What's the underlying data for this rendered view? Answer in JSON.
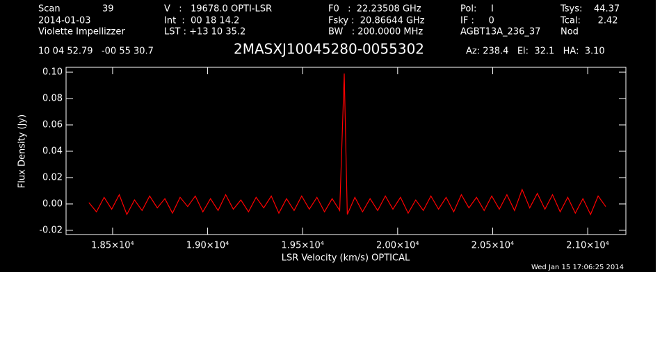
{
  "header": {
    "row1": [
      "Scan",
      "39",
      "V   :   19678.0 OPTI-LSR",
      "F0   :  22.23508 GHz",
      "Pol:     I",
      "Tsys:    44.37"
    ],
    "row2": [
      "2014-01-03",
      "Int  :  00 18 14.2",
      "Fsky :  20.86644 GHz",
      "IF :     0",
      "Tcal:      2.42"
    ],
    "row3": [
      "Violette Impellizzer",
      "LST : +13 10 35.2",
      "BW   : 200.0000 MHz",
      "AGBT13A_236_37",
      "Nod"
    ],
    "coords": "10 04 52.79   -00 55 30.7",
    "pointing": "Az: 238.4   El:  32.1   HA:  3.10",
    "footer": "Wed Jan 15 17:06:25 2014"
  },
  "chart_data": {
    "type": "line",
    "title": "2MASXJ10045280-0055302",
    "x_label": "LSR Velocity (km/s) OPTICAL",
    "y_label": "Flux Density (Jy)",
    "x": [
      18375,
      18415,
      18455,
      18495,
      18535,
      18575,
      18615,
      18655,
      18695,
      18735,
      18775,
      18815,
      18855,
      18895,
      18935,
      18975,
      19015,
      19055,
      19095,
      19135,
      19175,
      19215,
      19255,
      19295,
      19335,
      19375,
      19415,
      19455,
      19495,
      19535,
      19575,
      19615,
      19655,
      19695,
      19719,
      19735,
      19775,
      19815,
      19855,
      19895,
      19935,
      19975,
      20015,
      20055,
      20095,
      20135,
      20175,
      20215,
      20255,
      20295,
      20335,
      20375,
      20415,
      20455,
      20495,
      20535,
      20575,
      20615,
      20655,
      20695,
      20735,
      20775,
      20815,
      20855,
      20895,
      20935,
      20975,
      21015,
      21055,
      21095
    ],
    "series": [
      {
        "name": "spectrum",
        "color": "#ff0000",
        "values": [
          0.001,
          -0.006,
          0.005,
          -0.004,
          0.007,
          -0.008,
          0.003,
          -0.005,
          0.006,
          -0.003,
          0.004,
          -0.007,
          0.005,
          -0.002,
          0.006,
          -0.006,
          0.004,
          -0.005,
          0.007,
          -0.004,
          0.003,
          -0.006,
          0.005,
          -0.003,
          0.006,
          -0.007,
          0.004,
          -0.005,
          0.006,
          -0.004,
          0.005,
          -0.006,
          0.004,
          -0.005,
          0.099,
          -0.008,
          0.005,
          -0.006,
          0.004,
          -0.005,
          0.006,
          -0.004,
          0.005,
          -0.007,
          0.003,
          -0.005,
          0.006,
          -0.004,
          0.005,
          -0.006,
          0.007,
          -0.003,
          0.005,
          -0.005,
          0.006,
          -0.004,
          0.007,
          -0.005,
          0.011,
          -0.003,
          0.008,
          -0.004,
          0.007,
          -0.006,
          0.005,
          -0.007,
          0.004,
          -0.008,
          0.006,
          -0.002
        ]
      }
    ],
    "xlim": [
      18255,
      21201
    ],
    "ylim": [
      -0.0232,
      0.1037
    ],
    "xticks": [
      {
        "value": 18500,
        "label": "1.85×10⁴"
      },
      {
        "value": 19000,
        "label": "1.90×10⁴"
      },
      {
        "value": 19500,
        "label": "1.95×10⁴"
      },
      {
        "value": 20000,
        "label": "2.00×10⁴"
      },
      {
        "value": 20500,
        "label": "2.05×10⁴"
      },
      {
        "value": 21000,
        "label": "2.10×10⁴"
      }
    ],
    "yticks": [
      {
        "value": -0.02,
        "label": "-0.02"
      },
      {
        "value": 0,
        "label": "0.00"
      },
      {
        "value": 0.02,
        "label": "0.02"
      },
      {
        "value": 0.04,
        "label": "0.04"
      },
      {
        "value": 0.06,
        "label": "0.06"
      },
      {
        "value": 0.08,
        "label": "0.08"
      },
      {
        "value": 0.1,
        "label": "0.10"
      }
    ]
  }
}
